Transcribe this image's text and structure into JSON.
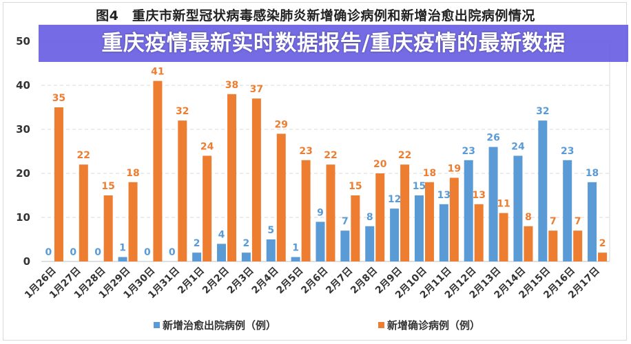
{
  "chart_data": {
    "type": "bar",
    "title": "图4　重庆市新型冠状病毒感染肺炎新增确诊病例和新增治愈出院病例情况",
    "categories": [
      "1月26日",
      "1月27日",
      "1月28日",
      "1月29日",
      "1月30日",
      "1月31日",
      "2月1日",
      "2月2日",
      "2月3日",
      "2月4日",
      "2月5日",
      "2月6日",
      "2月7日",
      "2月8日",
      "2月9日",
      "2月10日",
      "2月11日",
      "2月12日",
      "2月13日",
      "2月14日",
      "2月15日",
      "2月16日",
      "2月17日"
    ],
    "series": [
      {
        "name": "新增治愈出院病例（例）",
        "color": "#5b9bd5",
        "values": [
          0,
          0,
          0,
          1,
          0,
          0,
          2,
          4,
          2,
          5,
          1,
          9,
          7,
          8,
          12,
          15,
          13,
          23,
          26,
          24,
          32,
          23,
          18
        ]
      },
      {
        "name": "新增确诊病例（例）",
        "color": "#ed7d31",
        "values": [
          35,
          22,
          15,
          18,
          41,
          32,
          24,
          38,
          37,
          29,
          23,
          22,
          15,
          20,
          22,
          18,
          19,
          13,
          11,
          8,
          7,
          7,
          2
        ]
      }
    ],
    "yticks": [
      0,
      10,
      20,
      30,
      40,
      50
    ],
    "ylim": [
      0,
      50
    ],
    "grid": true,
    "legend": "bottom",
    "xlabel": "",
    "ylabel": ""
  },
  "banner": {
    "text": "重庆疫情最新实时数据报告/重庆疫情的最新数据",
    "color": "#6258e1"
  }
}
